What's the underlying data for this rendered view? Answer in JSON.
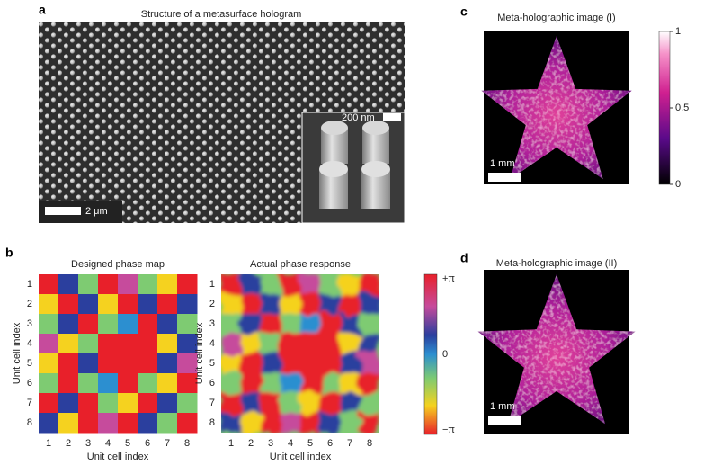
{
  "panels": {
    "a": {
      "label": "a",
      "title": "Structure of a metasurface hologram",
      "scale_bar": "2 μm",
      "inset_scale_bar": "200 nm"
    },
    "b": {
      "label": "b",
      "designed_title": "Designed phase map",
      "actual_title": "Actual phase response",
      "x_label": "Unit cell index",
      "y_label": "Unit cell index",
      "ticks": [
        1,
        2,
        3,
        4,
        5,
        6,
        7,
        8
      ],
      "cells": [
        [
          "#e8202a",
          "#2b3f9e",
          "#7ecb72",
          "#e8202a",
          "#c64b9c",
          "#7ecb72",
          "#f5d21f",
          "#e8202a"
        ],
        [
          "#f5d21f",
          "#e8202a",
          "#2b3f9e",
          "#f5d21f",
          "#e8202a",
          "#2b3f9e",
          "#e8202a",
          "#2b3f9e"
        ],
        [
          "#7ecb72",
          "#2b3f9e",
          "#e8202a",
          "#7ecb72",
          "#2c8fd0",
          "#e8202a",
          "#2b3f9e",
          "#7ecb72"
        ],
        [
          "#c64b9c",
          "#f5d21f",
          "#7ecb72",
          "#e8202a",
          "#e8202a",
          "#e8202a",
          "#f5d21f",
          "#2b3f9e"
        ],
        [
          "#f5d21f",
          "#e8202a",
          "#2b3f9e",
          "#e8202a",
          "#e8202a",
          "#e8202a",
          "#2b3f9e",
          "#c64b9c"
        ],
        [
          "#7ecb72",
          "#e8202a",
          "#7ecb72",
          "#2c8fd0",
          "#e8202a",
          "#7ecb72",
          "#f5d21f",
          "#e8202a"
        ],
        [
          "#e8202a",
          "#2b3f9e",
          "#e8202a",
          "#7ecb72",
          "#f5d21f",
          "#e8202a",
          "#2b3f9e",
          "#7ecb72"
        ],
        [
          "#2b3f9e",
          "#f5d21f",
          "#e8202a",
          "#c64b9c",
          "#e8202a",
          "#2b3f9e",
          "#7ecb72",
          "#e8202a"
        ]
      ],
      "colorbar_labels": [
        "+π",
        "0",
        "−π"
      ]
    },
    "c": {
      "label": "c",
      "title": "Meta-holographic image (I)",
      "scale_bar": "1 mm",
      "colorbar_ticks": [
        1,
        0.5,
        0
      ],
      "colorbar_lim": [
        0,
        1
      ]
    },
    "d": {
      "label": "d",
      "title": "Meta-holographic image (II)",
      "scale_bar": "1 mm"
    }
  }
}
